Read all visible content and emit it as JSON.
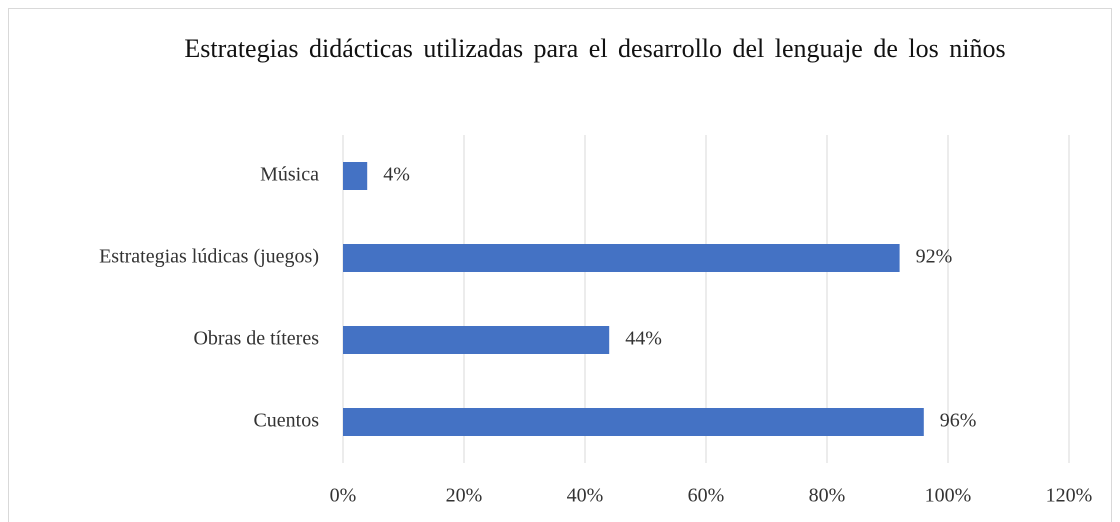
{
  "chart_data": {
    "type": "bar",
    "orientation": "horizontal",
    "title": "Estrategias didácticas utilizadas para el desarrollo del lenguaje de los niños",
    "categories": [
      "Música",
      "Estrategias lúdicas (juegos)",
      "Obras de títeres",
      "Cuentos"
    ],
    "values": [
      4,
      92,
      44,
      96
    ],
    "value_labels": [
      "4%",
      "92%",
      "44%",
      "96%"
    ],
    "color": "#4472c4",
    "xlim": [
      0,
      120
    ],
    "xticks": [
      {
        "value": 0,
        "label": "0%"
      },
      {
        "value": 20,
        "label": "20%"
      },
      {
        "value": 40,
        "label": "40%"
      },
      {
        "value": 60,
        "label": "60%"
      },
      {
        "value": 80,
        "label": "80%"
      },
      {
        "value": 100,
        "label": "100%"
      },
      {
        "value": 120,
        "label": "120%"
      }
    ],
    "grid": true
  }
}
